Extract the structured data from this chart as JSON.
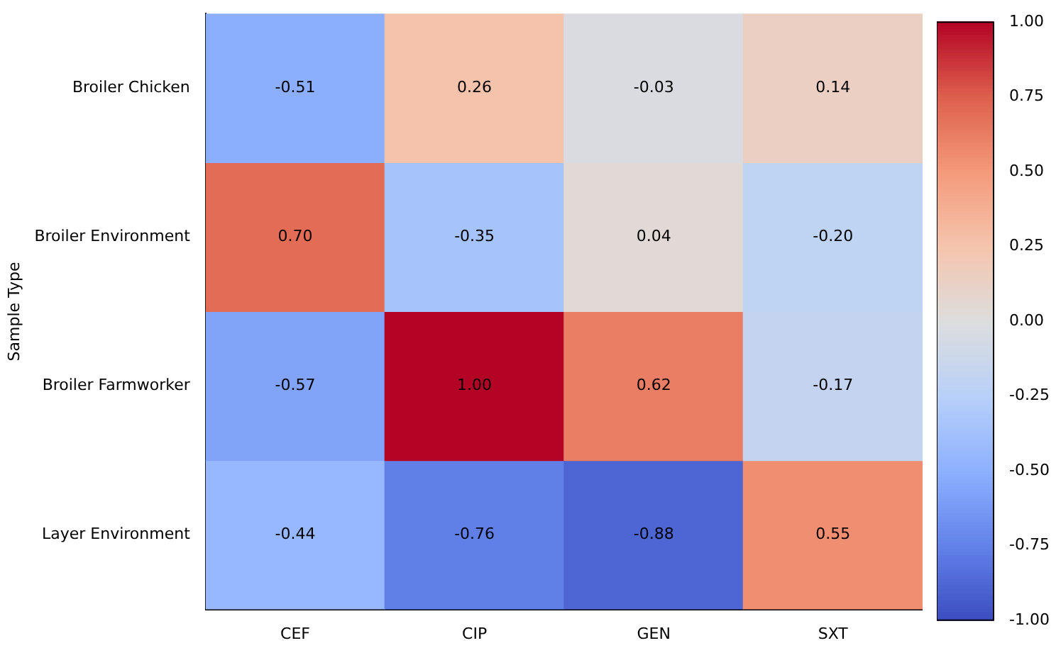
{
  "chart_data": {
    "type": "heatmap",
    "ylabel": "Sample Type",
    "categories": [
      "CEF",
      "CIP",
      "GEN",
      "SXT"
    ],
    "y_categories": [
      "Broiler Chicken",
      "Broiler Environment",
      "Broiler Farmworker",
      "Layer Environment"
    ],
    "cells": [
      [
        -0.51,
        0.26,
        -0.03,
        0.14
      ],
      [
        0.7,
        -0.35,
        0.04,
        -0.2
      ],
      [
        -0.57,
        1.0,
        0.62,
        -0.17
      ],
      [
        -0.44,
        -0.76,
        -0.88,
        0.55
      ]
    ],
    "cell_labels": [
      [
        "-0.51",
        "0.26",
        "-0.03",
        "0.14"
      ],
      [
        "0.70",
        "-0.35",
        "0.04",
        "-0.20"
      ],
      [
        "-0.57",
        "1.00",
        "0.62",
        "-0.17"
      ],
      [
        "-0.44",
        "-0.76",
        "-0.88",
        "0.55"
      ]
    ],
    "clim": [
      -1,
      1
    ],
    "cticks": [
      {
        "value": -1,
        "label": "-1.00"
      },
      {
        "value": -0.75,
        "label": "-0.75"
      },
      {
        "value": -0.5,
        "label": "-0.50"
      },
      {
        "value": -0.25,
        "label": "-0.25"
      },
      {
        "value": 0,
        "label": "0.00"
      },
      {
        "value": 0.25,
        "label": "0.25"
      },
      {
        "value": 0.5,
        "label": "0.50"
      },
      {
        "value": 0.75,
        "label": "0.75"
      },
      {
        "value": 1,
        "label": "1.00"
      }
    ]
  }
}
